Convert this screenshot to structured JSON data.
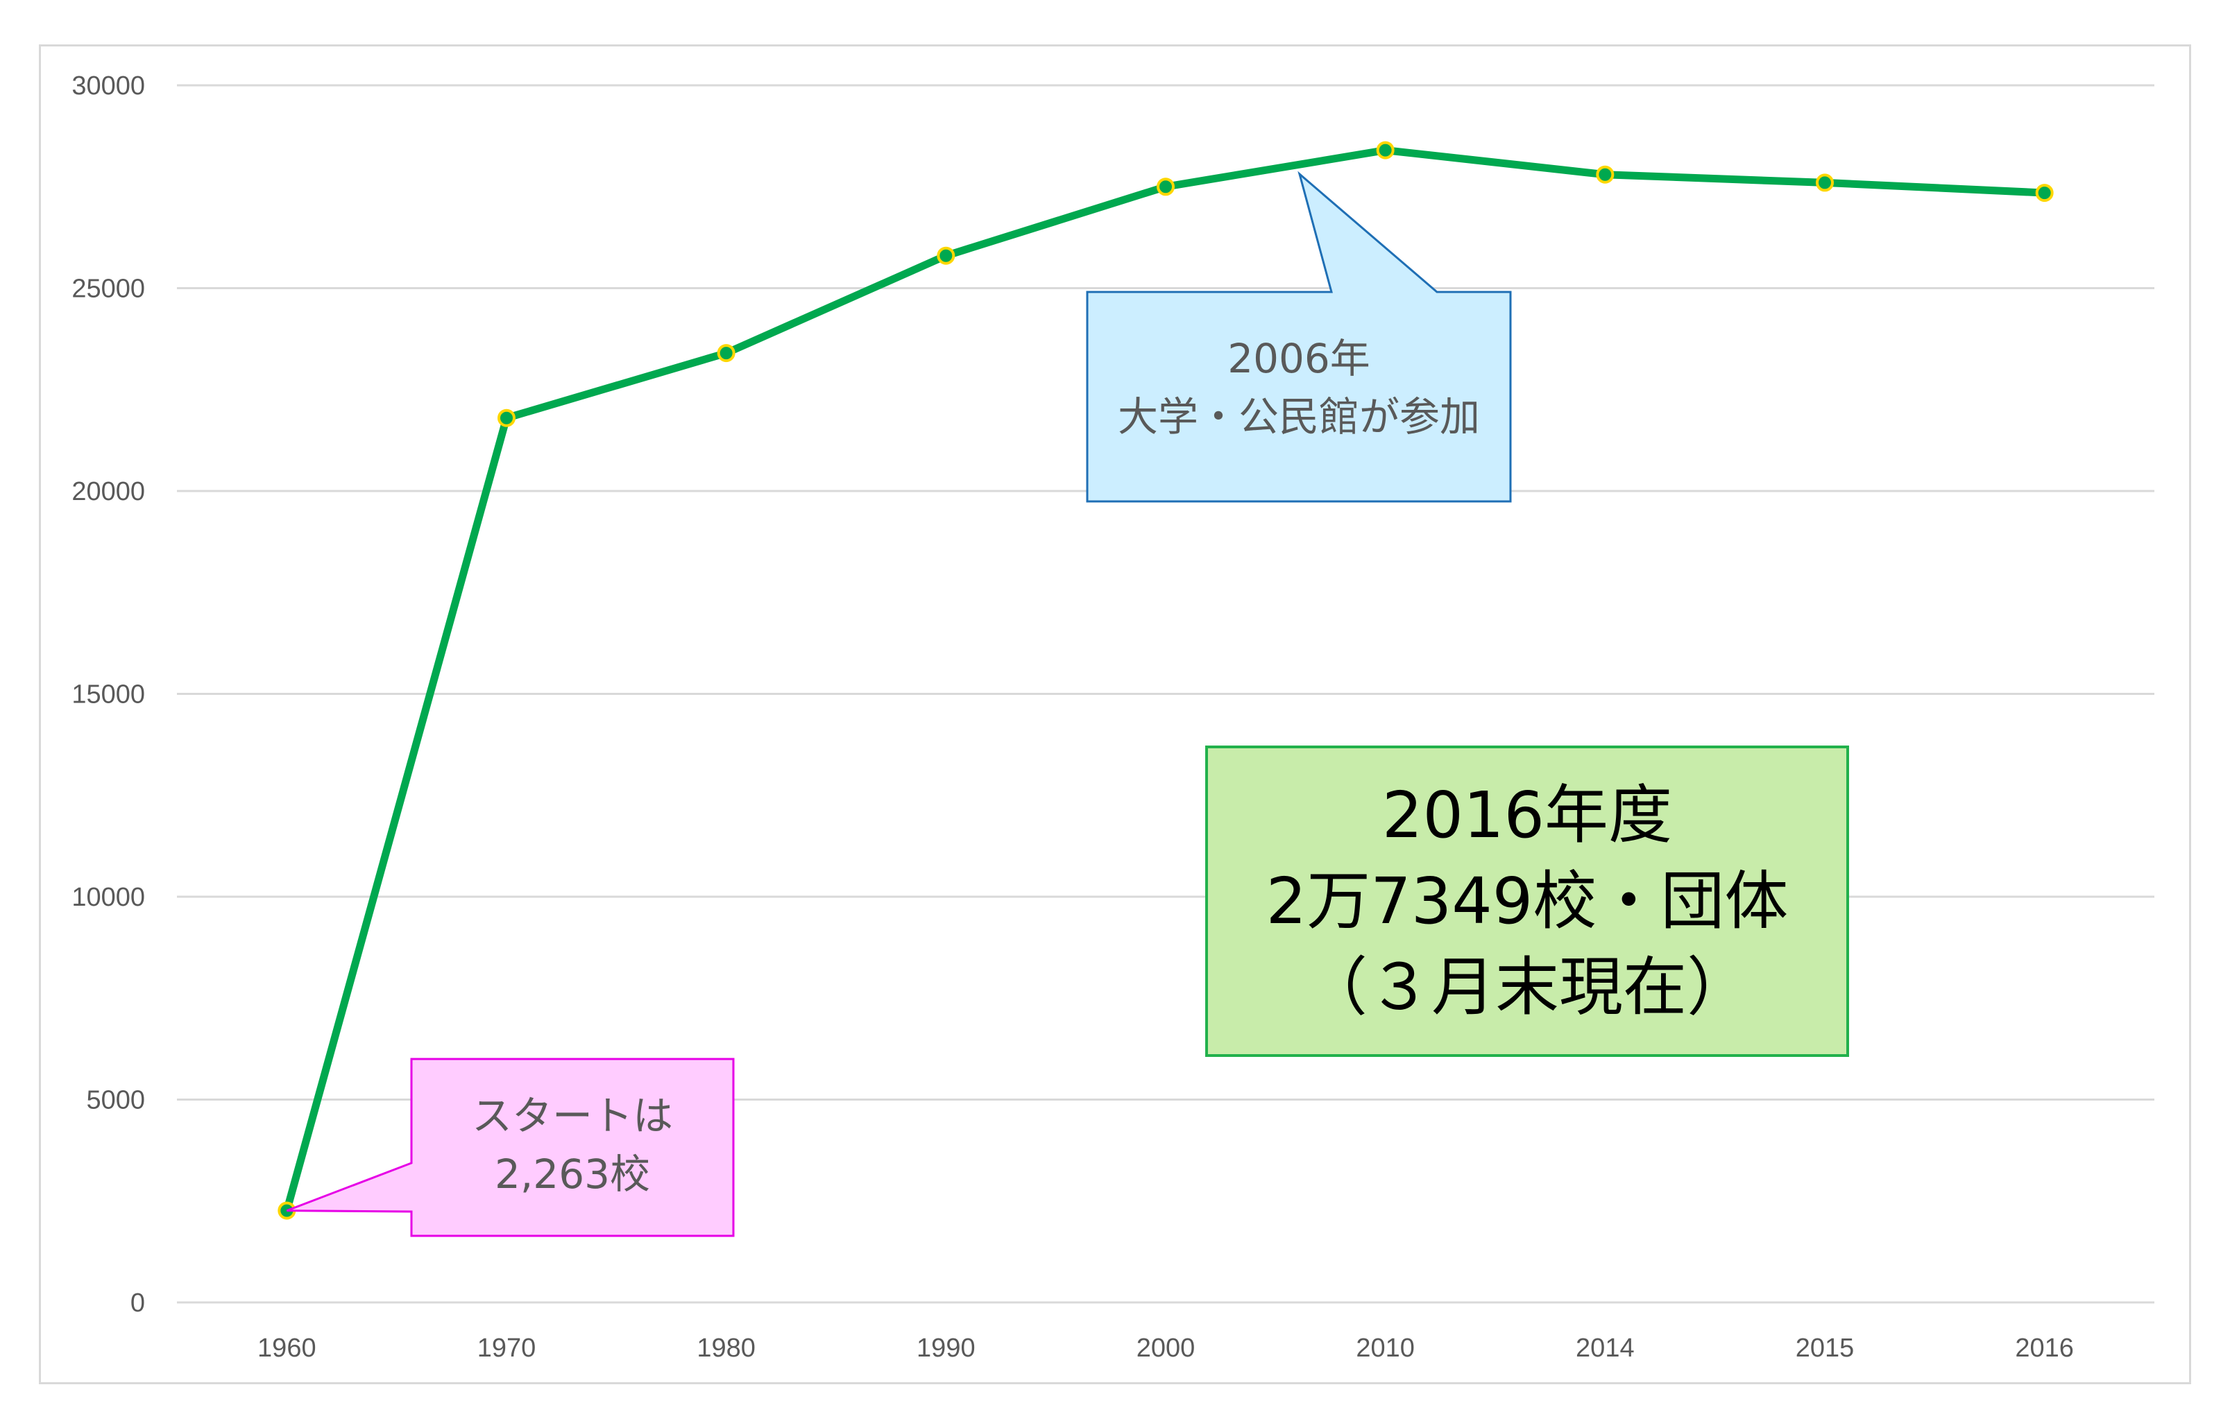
{
  "chart_data": {
    "type": "line",
    "title": "",
    "xlabel": "",
    "ylabel": "",
    "categories": [
      "1960",
      "1970",
      "1980",
      "1990",
      "2000",
      "2010",
      "2014",
      "2015",
      "2016"
    ],
    "series": [
      {
        "values": [
          2263,
          21800,
          23400,
          25800,
          27500,
          28400,
          27800,
          27600,
          27349
        ]
      }
    ],
    "ylim": [
      0,
      30000
    ],
    "yticks": [
      "0",
      "5000",
      "10000",
      "15000",
      "20000",
      "25000",
      "30000"
    ],
    "grid": true,
    "legend": "none",
    "colors": {
      "line": "#00a84f",
      "marker_fill": "#00a84f",
      "marker_edge": "#ffd700",
      "gridline": "#d9d9d9",
      "axis_text": "#595959"
    },
    "annotations": [
      {
        "id": "start",
        "lines": [
          "スタートは",
          "2,263校"
        ],
        "fill": "#ffccff",
        "stroke": "#e600e6",
        "text_color": "#595959"
      },
      {
        "id": "2006",
        "lines": [
          "2006年",
          "大学・公民館が参加"
        ],
        "fill": "#cceeff",
        "stroke": "#1f6fb5",
        "text_color": "#595959"
      },
      {
        "id": "total",
        "lines": [
          "2016年度",
          "2万7349校・団体",
          "（３月末現在）"
        ],
        "fill": "#c8ecaa",
        "stroke": "#22b14c",
        "text_color": "#000000"
      }
    ]
  }
}
